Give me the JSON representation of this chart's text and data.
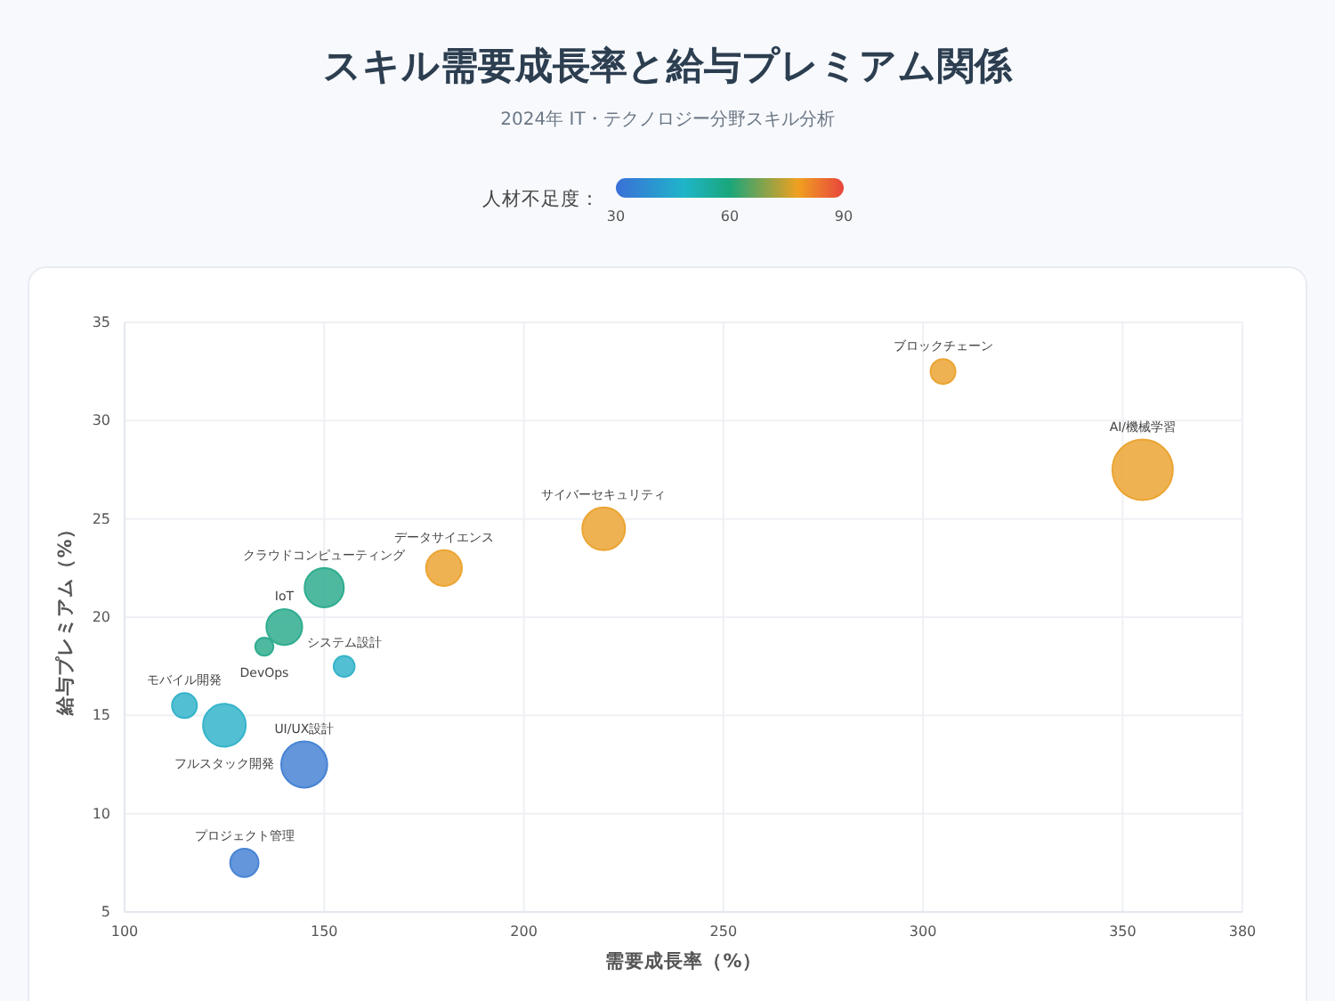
{
  "chart_data": {
    "type": "bubble",
    "title": "スキル需要成長率と給与プレミアム関係",
    "subtitle": "2024年 IT・テクノロジー分野スキル分析",
    "xlabel": "需要成長率（%）",
    "ylabel": "給与プレミアム（%）",
    "clabel": "人材不足度：",
    "x": [
      305,
      355,
      220,
      180,
      150,
      140,
      135,
      155,
      115,
      125,
      145,
      130
    ],
    "values": [
      32.5,
      27.5,
      24.5,
      22.5,
      21.5,
      19.5,
      18.5,
      17.5,
      15.5,
      14.5,
      12.5,
      7.5
    ],
    "sizes": [
      0.17,
      1,
      0.5,
      0.35,
      0.42,
      0.35,
      0.09,
      0.12,
      0.17,
      0.5,
      0.58,
      0.22
    ],
    "cvalues": [
      78,
      78,
      78,
      78,
      58,
      58,
      58,
      47,
      47,
      47,
      33,
      33
    ],
    "clim": [
      30,
      90
    ],
    "cticks": [
      30,
      60,
      90
    ],
    "annotations": [
      {
        "text": "ブロックチェーン",
        "x": 305,
        "y": 32.5
      },
      {
        "text": "AI/機械学習",
        "x": 355,
        "y": 27.5
      },
      {
        "text": "サイバーセキュリティ",
        "x": 220,
        "y": 24.5
      },
      {
        "text": "データサイエンス",
        "x": 180,
        "y": 22.5
      },
      {
        "text": "クラウドコンピューティング",
        "x": 150,
        "y": 21.5
      },
      {
        "text": "IoT",
        "x": 140,
        "y": 19.5
      },
      {
        "text": "DevOps",
        "x": 135,
        "y": 18.5
      },
      {
        "text": "システム設計",
        "x": 155,
        "y": 17.5
      },
      {
        "text": "モバイル開発",
        "x": 115,
        "y": 15.5
      },
      {
        "text": "フルスタック開発",
        "x": 125,
        "y": 14.5
      },
      {
        "text": "UI/UX設計",
        "x": 145,
        "y": 12.5
      },
      {
        "text": "プロジェクト管理",
        "x": 130,
        "y": 7.5
      }
    ],
    "xlim": [
      100,
      380
    ],
    "xticks": [
      100,
      150,
      200,
      250,
      300,
      350,
      380
    ],
    "ylim": [
      5,
      35
    ],
    "yticks": [
      5,
      10,
      15,
      20,
      25,
      30,
      35
    ],
    "grid": true
  }
}
